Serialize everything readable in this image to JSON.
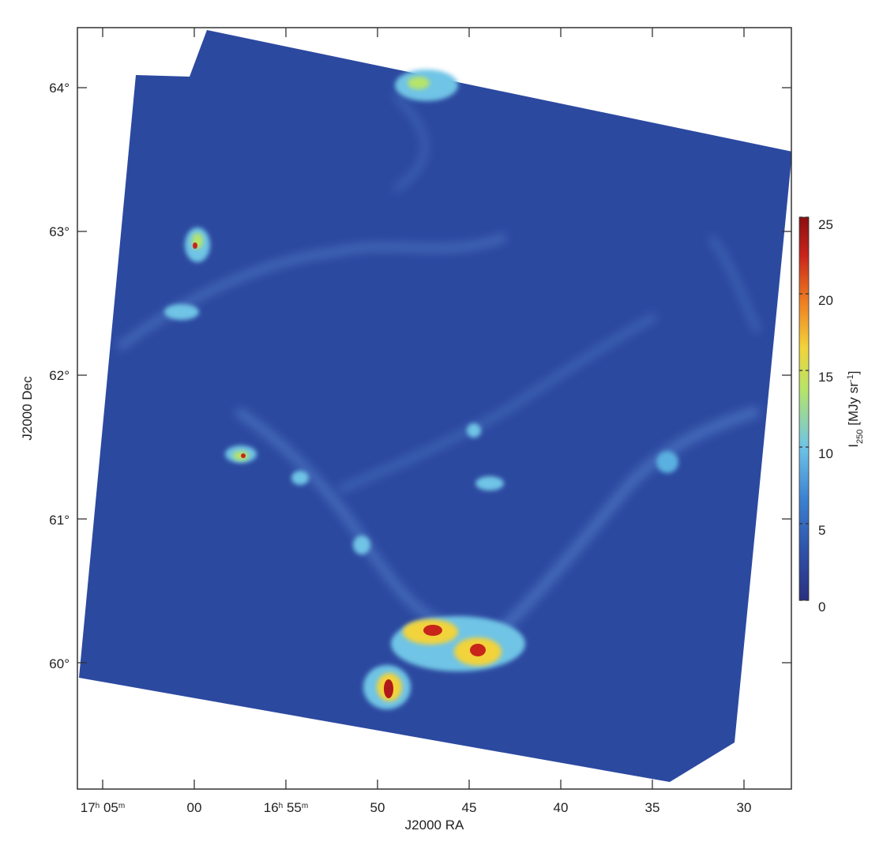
{
  "figure": {
    "type": "heatmap",
    "x_axis": {
      "title": "J2000 RA",
      "ticks": [
        {
          "h": "17",
          "m": "05",
          "label": "17h 05m"
        },
        {
          "label": "00"
        },
        {
          "h": "16",
          "m": "55",
          "label": "16h 55m"
        },
        {
          "label": "50"
        },
        {
          "label": "45"
        },
        {
          "label": "40"
        },
        {
          "label": "35"
        },
        {
          "label": "30"
        }
      ],
      "tick_minutes": [
        65,
        60,
        55,
        50,
        45,
        40,
        35,
        30
      ]
    },
    "y_axis": {
      "title": "J2000 Dec",
      "ticks": [
        "64°",
        "63°",
        "62°",
        "61°",
        "60°"
      ],
      "tick_values": [
        64,
        63,
        62,
        61,
        60
      ]
    },
    "colorbar": {
      "label_main": "I",
      "label_sub": "250",
      "label_unit": " [MJy sr",
      "label_sup": "-1",
      "label_end": "]",
      "ticks": [
        "25",
        "20",
        "15",
        "10",
        "5",
        "0"
      ],
      "tick_values": [
        25,
        20,
        15,
        10,
        5,
        0
      ],
      "range": [
        0,
        25
      ],
      "colormap": [
        "#2b2f7f",
        "#2f52a8",
        "#3b7fd0",
        "#6fc4e6",
        "#b6e46b",
        "#f2d33a",
        "#ee7d22",
        "#c8251b",
        "#8a0f12"
      ]
    },
    "colors": {
      "background_map": "#2c49a0",
      "frame": "#333333"
    }
  }
}
